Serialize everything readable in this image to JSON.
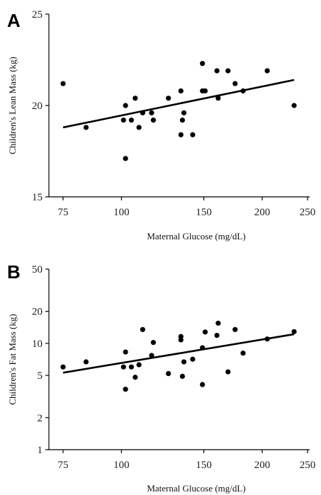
{
  "chart_data": [
    {
      "panel_label": "A",
      "type": "scatter",
      "xlabel": "Maternal Glucose (mg/dL)",
      "ylabel": "Children's Lean Mass (kg)",
      "x_scale": "log",
      "y_scale": "linear",
      "xlim": [
        75,
        250
      ],
      "ylim": [
        15,
        25
      ],
      "x_ticks": [
        75,
        100,
        150,
        200,
        250
      ],
      "y_ticks": [
        15,
        20,
        25
      ],
      "points": [
        {
          "x": 75,
          "y": 21.2
        },
        {
          "x": 84,
          "y": 18.8
        },
        {
          "x": 101,
          "y": 19.2
        },
        {
          "x": 102,
          "y": 20.0
        },
        {
          "x": 102,
          "y": 17.1
        },
        {
          "x": 105,
          "y": 19.2
        },
        {
          "x": 107,
          "y": 20.4
        },
        {
          "x": 109,
          "y": 18.8
        },
        {
          "x": 111,
          "y": 19.6
        },
        {
          "x": 116,
          "y": 19.6
        },
        {
          "x": 117,
          "y": 19.2
        },
        {
          "x": 126,
          "y": 20.4
        },
        {
          "x": 134,
          "y": 20.8
        },
        {
          "x": 134,
          "y": 18.4
        },
        {
          "x": 135,
          "y": 19.2
        },
        {
          "x": 136,
          "y": 19.6
        },
        {
          "x": 142,
          "y": 18.4
        },
        {
          "x": 149,
          "y": 22.3
        },
        {
          "x": 149,
          "y": 20.8
        },
        {
          "x": 151,
          "y": 20.8
        },
        {
          "x": 160,
          "y": 21.9
        },
        {
          "x": 161,
          "y": 20.4
        },
        {
          "x": 169,
          "y": 21.9
        },
        {
          "x": 175,
          "y": 21.2
        },
        {
          "x": 182,
          "y": 20.8
        },
        {
          "x": 205,
          "y": 21.9
        },
        {
          "x": 234,
          "y": 20.0
        }
      ],
      "trendline": [
        {
          "x": 75,
          "y": 18.8
        },
        {
          "x": 234,
          "y": 21.4
        }
      ]
    },
    {
      "panel_label": "B",
      "type": "scatter",
      "xlabel": "Maternal Glucose (mg/dL)",
      "ylabel": "Children's Fat Mass (kg)",
      "x_scale": "log",
      "y_scale": "log",
      "xlim": [
        75,
        250
      ],
      "ylim": [
        1,
        50
      ],
      "x_ticks": [
        75,
        100,
        150,
        200,
        250
      ],
      "y_ticks": [
        1,
        2,
        5,
        10,
        20,
        50
      ],
      "points": [
        {
          "x": 75,
          "y": 6.0
        },
        {
          "x": 84,
          "y": 6.7
        },
        {
          "x": 101,
          "y": 6.0
        },
        {
          "x": 102,
          "y": 8.3
        },
        {
          "x": 102,
          "y": 3.7
        },
        {
          "x": 105,
          "y": 6.0
        },
        {
          "x": 107,
          "y": 4.8
        },
        {
          "x": 109,
          "y": 6.3
        },
        {
          "x": 111,
          "y": 13.5
        },
        {
          "x": 116,
          "y": 7.7
        },
        {
          "x": 117,
          "y": 10.2
        },
        {
          "x": 126,
          "y": 5.2
        },
        {
          "x": 134,
          "y": 11.6
        },
        {
          "x": 134,
          "y": 10.8
        },
        {
          "x": 135,
          "y": 4.9
        },
        {
          "x": 136,
          "y": 6.7
        },
        {
          "x": 142,
          "y": 7.1
        },
        {
          "x": 149,
          "y": 9.1
        },
        {
          "x": 149,
          "y": 4.1
        },
        {
          "x": 151,
          "y": 12.8
        },
        {
          "x": 160,
          "y": 11.9
        },
        {
          "x": 161,
          "y": 15.5
        },
        {
          "x": 169,
          "y": 5.4
        },
        {
          "x": 175,
          "y": 13.5
        },
        {
          "x": 182,
          "y": 8.1
        },
        {
          "x": 205,
          "y": 11.0
        },
        {
          "x": 234,
          "y": 12.9
        }
      ],
      "trendline": [
        {
          "x": 75,
          "y": 5.3
        },
        {
          "x": 234,
          "y": 12.2
        }
      ]
    }
  ]
}
